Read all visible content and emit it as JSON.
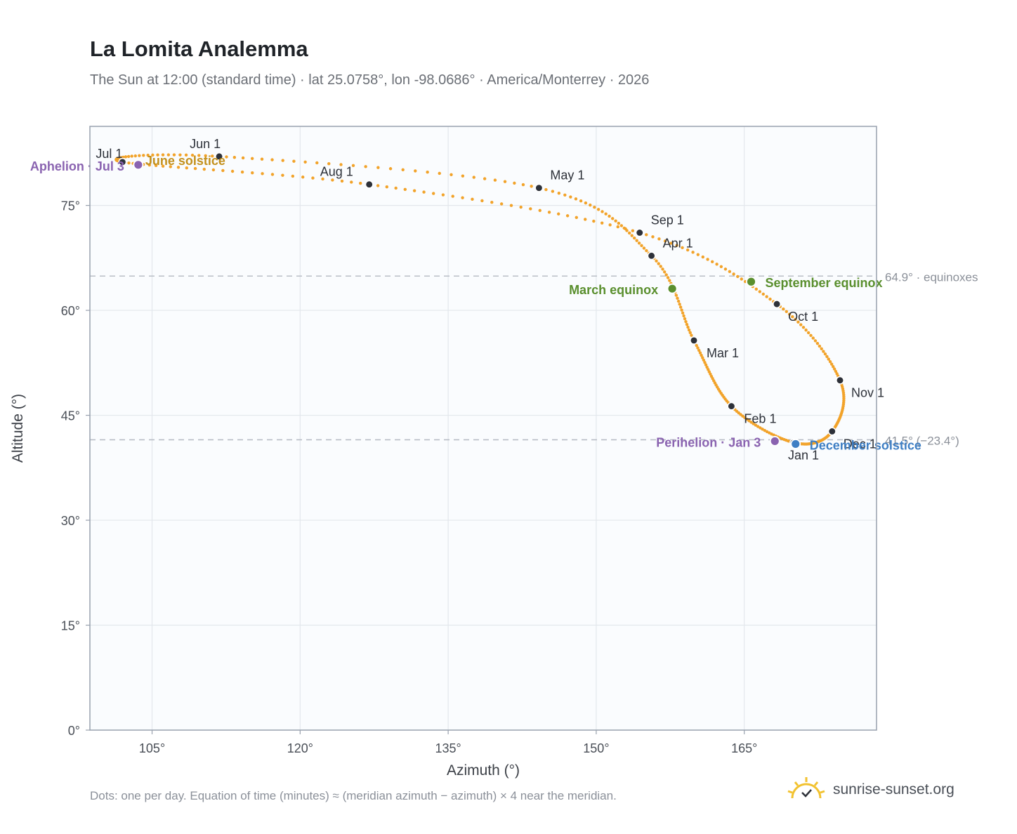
{
  "header": {
    "title": "La Lomita Analemma",
    "subtitle": "The Sun at 12:00 (standard time) · lat 25.0758°, lon -98.0686° · America/Monterrey · 2026"
  },
  "chart_data": {
    "type": "scatter",
    "xlabel": "Azimuth (°)",
    "ylabel": "Altitude (°)",
    "xlim": [
      98.7,
      178.4
    ],
    "ylim": [
      0,
      86.3
    ],
    "xticks": [
      105,
      120,
      135,
      150,
      165
    ],
    "yticks": [
      0,
      15,
      30,
      45,
      60,
      75
    ],
    "grid": true,
    "colors": {
      "path": "#f2a32a",
      "month": "#2d3139",
      "equinox": "#5a8f2e",
      "solstice_june": "#c3901c",
      "solstice_dec": "#3f7fc4",
      "apsis": "#8a63b0",
      "refline": "#b9bec6"
    },
    "month_points": [
      {
        "label": "Jan 1",
        "x": 170.0,
        "y": 41.1
      },
      {
        "label": "Feb 1",
        "x": 163.7,
        "y": 46.3
      },
      {
        "label": "Mar 1",
        "x": 159.9,
        "y": 55.7
      },
      {
        "label": "Apr 1",
        "x": 155.6,
        "y": 67.8
      },
      {
        "label": "May 1",
        "x": 144.2,
        "y": 77.5
      },
      {
        "label": "Jun 1",
        "x": 111.8,
        "y": 82.0
      },
      {
        "label": "Jul 1",
        "x": 102.0,
        "y": 81.2
      },
      {
        "label": "Aug 1",
        "x": 127.0,
        "y": 78.0
      },
      {
        "label": "Sep 1",
        "x": 154.4,
        "y": 71.1
      },
      {
        "label": "Oct 1",
        "x": 168.3,
        "y": 60.9
      },
      {
        "label": "Nov 1",
        "x": 174.7,
        "y": 50.0
      },
      {
        "label": "Dec 1",
        "x": 173.9,
        "y": 42.7
      }
    ],
    "events": [
      {
        "label": "March equinox",
        "x": 157.7,
        "y": 63.1
      },
      {
        "label": "September equinox",
        "x": 165.7,
        "y": 64.1
      },
      {
        "label": "June solstice",
        "x": 103.6,
        "y": 80.8
      },
      {
        "label": "December solstice",
        "x": 170.2,
        "y": 40.9
      },
      {
        "label": "Perihelion · Jan 3",
        "x": 168.1,
        "y": 41.3
      },
      {
        "label": "Aphelion · Jul 3",
        "x": 103.6,
        "y": 80.8
      }
    ],
    "reference_lines": [
      {
        "y": 64.9,
        "label": "64.9° · equinoxes"
      },
      {
        "y": 41.5,
        "label": "41.5° (−23.4°)"
      }
    ]
  },
  "footer": {
    "note": "Dots: one per day. Equation of time (minutes) ≈ (meridian azimuth − azimuth) × 4 near the meridian.",
    "brand": "sunrise-sunset.org"
  }
}
